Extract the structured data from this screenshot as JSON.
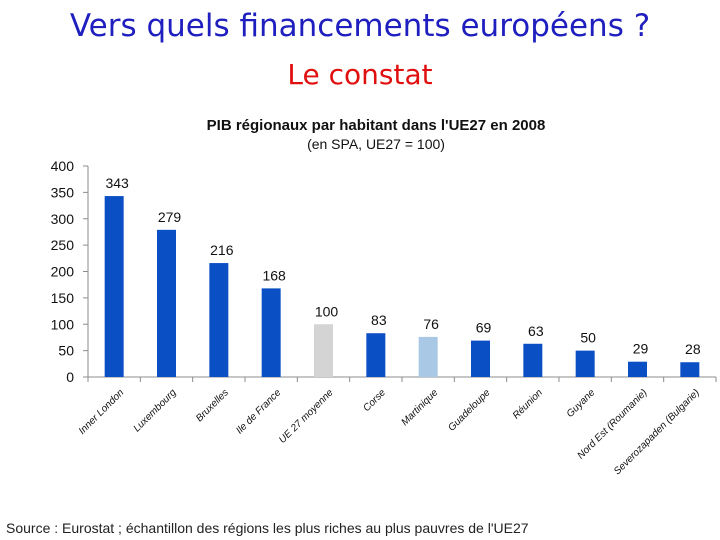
{
  "slide": {
    "title": "Vers quels financements européens ?",
    "subtitle": "Le constat",
    "source": "Source : Eurostat ; échantillon des régions les plus riches au plus pauvres de l'UE27",
    "colors": {
      "title": "#1f1fbf",
      "subtitle": "#e01010"
    }
  },
  "chart_data": {
    "type": "bar",
    "title": "PIB régionaux par habitant dans l'UE27 en 2008",
    "subtitle": "(en SPA, UE27 = 100)",
    "xlabel": "",
    "ylabel": "",
    "ylim": [
      0,
      400
    ],
    "yticks": [
      0,
      50,
      100,
      150,
      200,
      250,
      300,
      350,
      400
    ],
    "grid": false,
    "categories": [
      "Inner London",
      "Luxembourg",
      "Bruxelles",
      "Ile de France",
      "UE 27 moyenne",
      "Corse",
      "Martinique",
      "Guadeloupe",
      "Réunion",
      "Guyane",
      "Nord Est (Roumanie)",
      "Severozapaden (Bulgarie)"
    ],
    "values": [
      343,
      279,
      216,
      168,
      100,
      83,
      76,
      69,
      63,
      50,
      29,
      28
    ],
    "bar_colors": [
      "#0b4fc4",
      "#0b4fc4",
      "#0b4fc4",
      "#0b4fc4",
      "#d4d4d4",
      "#0b4fc4",
      "#a8c8e6",
      "#0b4fc4",
      "#0b4fc4",
      "#0b4fc4",
      "#0b4fc4",
      "#0b4fc4"
    ]
  }
}
